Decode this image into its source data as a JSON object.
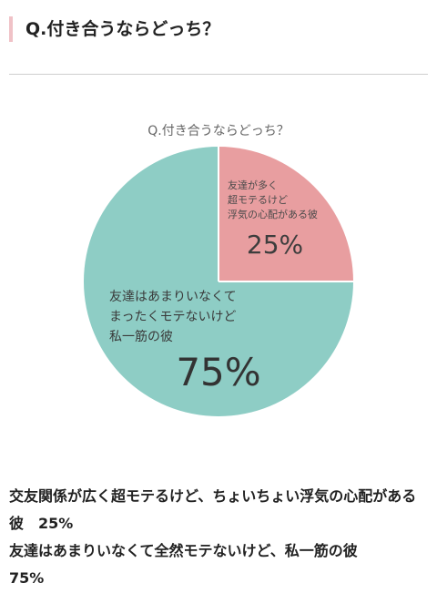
{
  "heading": "Q.付き合うならどっち？",
  "chart_data": {
    "type": "pie",
    "title": "Q.付き合うならどっち？",
    "slices": [
      {
        "label_lines": [
          "友達が多く",
          "超モテるけど",
          "浮気の心配がある彼"
        ],
        "value": 25,
        "value_label": "25%",
        "color": "#e89ea0"
      },
      {
        "label_lines": [
          "友達はあまりいなくて",
          "まったくモテないけど",
          "私一筋の彼"
        ],
        "value": 75,
        "value_label": "75%",
        "color": "#8ecdc5"
      }
    ]
  },
  "summary": [
    {
      "text": "交友関係が広く超モテるけど、ちょいちょい浮気の心配がある彼",
      "value": "25%"
    },
    {
      "text": "友達はあまりいなくて全然モテないけど、私一筋の彼",
      "value": "75%"
    }
  ]
}
